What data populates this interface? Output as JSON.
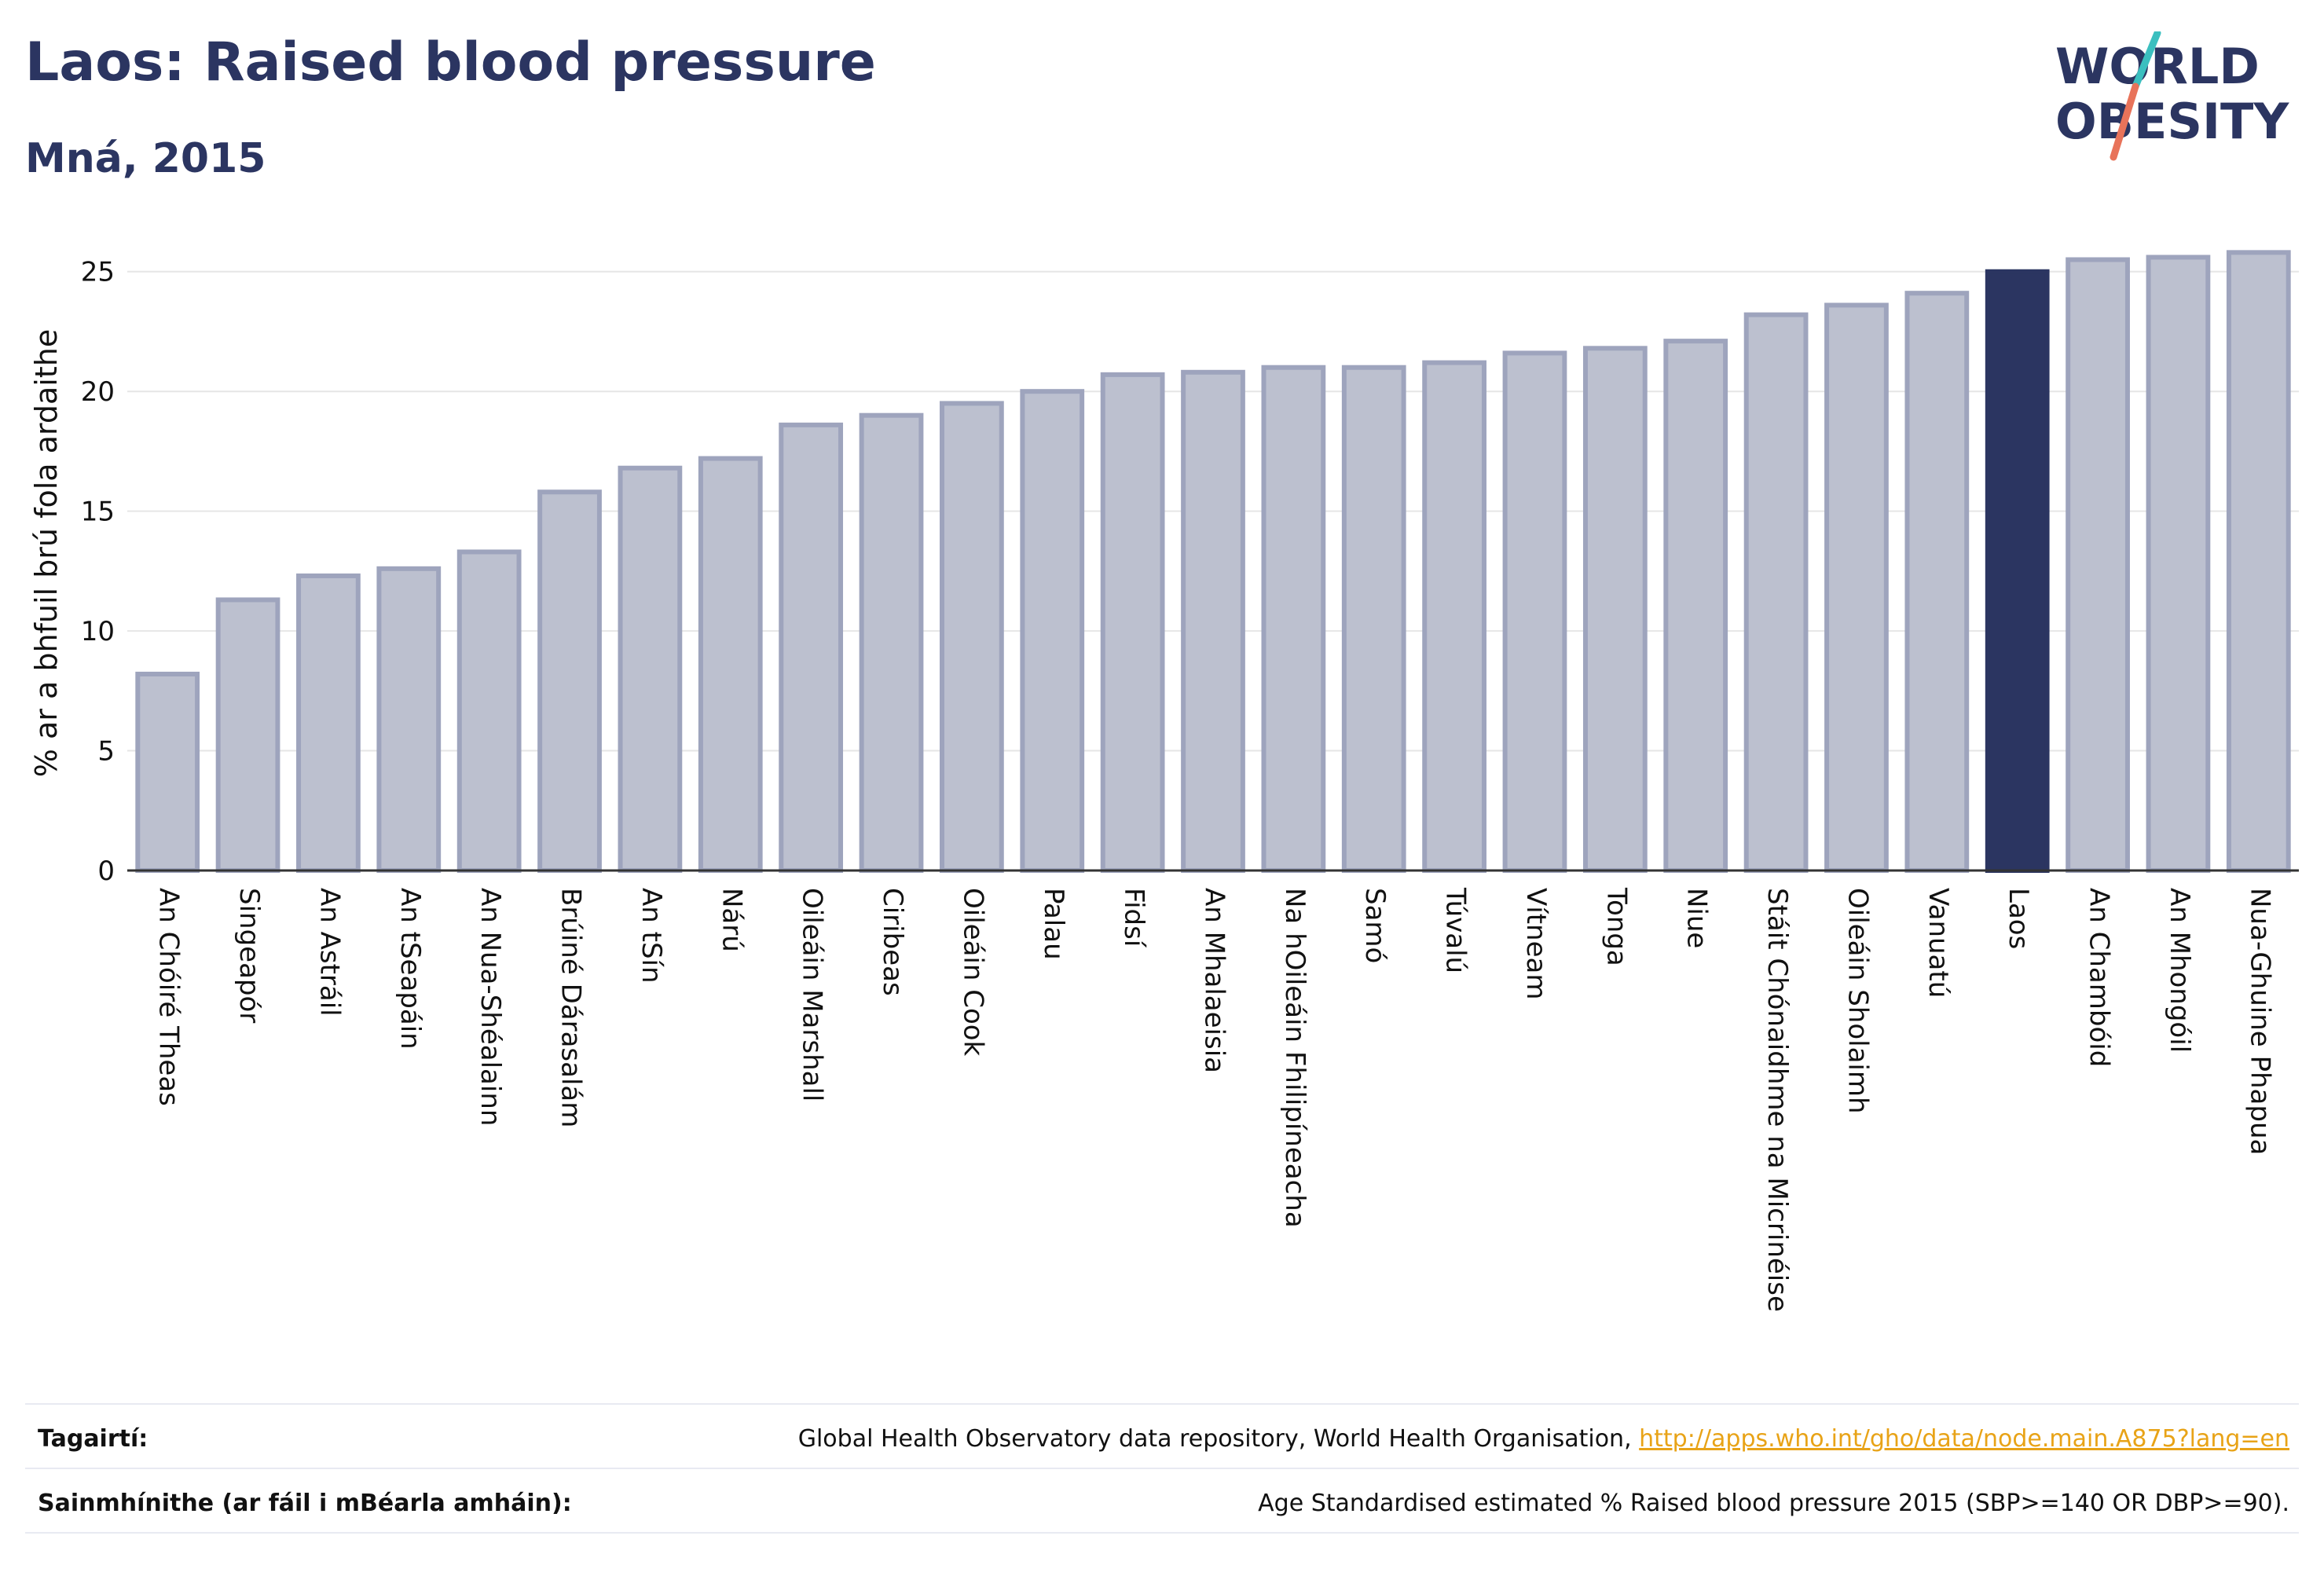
{
  "title": "Laos: Raised blood pressure",
  "subtitle": "Mná, 2015",
  "logo": {
    "line1": "WORLD",
    "line2": "OBESITY",
    "slash_colors": [
      "#3bbfbf",
      "#e8735a"
    ]
  },
  "colors": {
    "bar": "#bcc0cf",
    "bar_edge": "#9ea4bd",
    "highlight": "#2b3561",
    "grid": "#e6e6e6",
    "axis": "#333333",
    "text": "#111111"
  },
  "chart_data": {
    "type": "bar",
    "title": "Laos: Raised blood pressure",
    "subtitle": "Mná, 2015",
    "xlabel": "",
    "ylabel": "% ar a bhfuil brú fola ardaithe",
    "ylim": [
      0,
      26.5
    ],
    "yticks": [
      0,
      5,
      10,
      15,
      20,
      25
    ],
    "grid": true,
    "highlight": "Laos",
    "categories": [
      "An Chóiré Theas",
      "Singeapór",
      "An Astráil",
      "An tSeapáin",
      "An Nua-Shéalainn",
      "Brúiné Dárasalám",
      "An tSín",
      "Nárú",
      "Oileáin Marshall",
      "Ciribeas",
      "Oileáin Cook",
      "Palau",
      "Fidsí",
      "An Mhalaeisia",
      "Na hOileáin Fhilipíneacha",
      "Samó",
      "Túvalú",
      "Vítneam",
      "Tonga",
      "Niue",
      "Stáit Chónaidhme na Micrinéise",
      "Oileáin Sholaimh",
      "Vanuatú",
      "Laos",
      "An Chambóid",
      "An Mhongóil",
      "Nua-Ghuine Phapua"
    ],
    "values": [
      8.2,
      11.3,
      12.3,
      12.6,
      13.3,
      15.8,
      16.8,
      17.2,
      18.6,
      19.0,
      19.5,
      20.0,
      20.7,
      20.8,
      21.0,
      21.0,
      21.2,
      21.6,
      21.8,
      22.1,
      23.2,
      23.6,
      24.1,
      25.0,
      25.5,
      25.6,
      25.8
    ]
  },
  "footer": {
    "references_label": "Tagairtí:",
    "references_text": "Global Health Observatory data repository, World Health Organisation, ",
    "references_link": "http://apps.who.int/gho/data/node.main.A875?lang=en",
    "definitions_label": "Sainmhínithe (ar fáil i mBéarla amháin):",
    "definitions_text": "Age Standardised estimated % Raised blood pressure 2015 (SBP>=140 OR DBP>=90)."
  }
}
